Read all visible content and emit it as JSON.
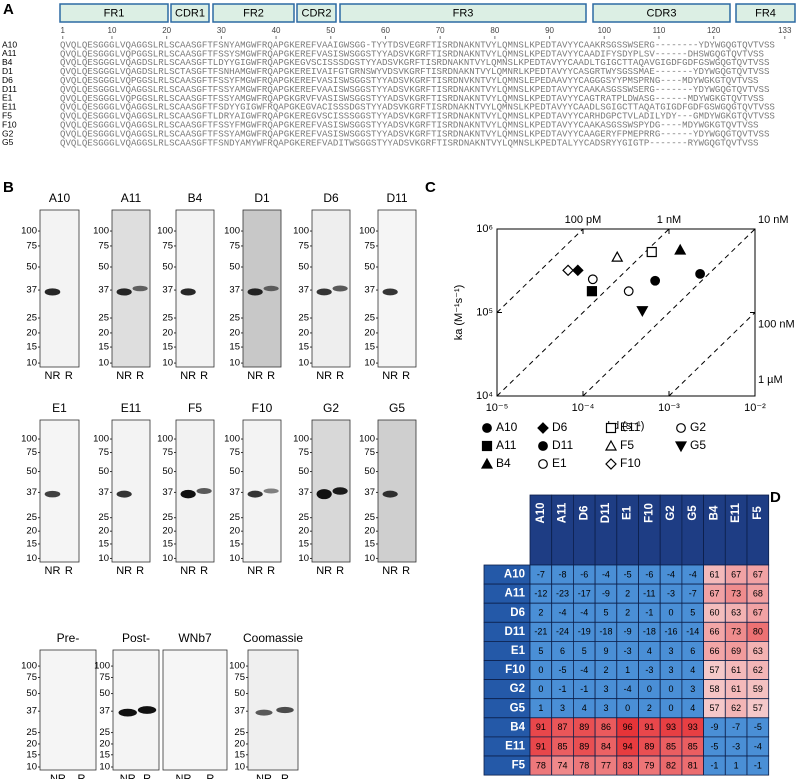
{
  "panel_labels": [
    "A",
    "B",
    "C",
    "D"
  ],
  "alignment": {
    "regions": [
      "FR1",
      "CDR1",
      "FR2",
      "CDR2",
      "FR3",
      "CDR3",
      "FR4"
    ],
    "ruler": [
      1,
      10,
      20,
      30,
      40,
      50,
      60,
      70,
      80,
      90,
      100,
      110,
      120,
      133
    ],
    "rows": [
      {
        "name": "A10",
        "sequence": "QVQLQESGGGLVQAGGSLRLSCAASGFTFSNYAMGWFRQAPGKEREFVAAIGWSGG-TYYTDSVEGRFTISRDNAKNTVYLQMNSLKPEDTAVYYCAAKRSGSSWSERG--------YDYWGQGTQVTVSS"
      },
      {
        "name": "A11",
        "sequence": "QVQLQESGGGLVQPGGSLRLSCAASGFTFSSYSMGWFRQAPGKEREFVASISWSGGSTYYADSVKGRFTISRDNAKNTVYLQMNSLKPEDTAVYYCAADIFYSDYPLSV------DHSWGQGTQVTVSS"
      },
      {
        "name": "B4",
        "sequence": "QVQLQESGGGLVQAGDSLRLSCAASGFTLDYYGIGWFRQAPGKEGVSCISSSDGSTYYADSVKGRFTISRDNAKNTVYLQMNSLKPEDTAVYYCAADLTGIGCTTAQAVGIGDFGDFGSWGQGTQVTVSS"
      },
      {
        "name": "D1",
        "sequence": "QVQLQESGGGLVQAGDSLRLSCTASGFTFSNHAMGWFRQAPGKEREIVAIFGTGRNSWYVDSVKGRFTISRDNAKNTVYLQMNRLKPEDTAVYYCASGRTWYSGSSMAE-------YDYWGQGTQVTVSS"
      },
      {
        "name": "D6",
        "sequence": "QVQLQESGGGLVQPGGSLRLSCAASGFTFSSYFMGWFRQAPGKEREFVASISWSGGSTYYADSVKGRFTISRDNVKNTVYLQMNSLEPEDAAVYYCAGGGSYYPMSPRNG----MDYWGKGTQVTVSS"
      },
      {
        "name": "D11",
        "sequence": "QVQLQESGGGLVQAGGSLRLSCAASGFTFSSYAMGWFRQAPGKEREFVAAISWSGGSTYYADSVKGRFTISRDNAKNTVYLQMNSLKPEDTAVYYCAAKASGSSWSERG-------YDYWGQGTQVTVSS"
      },
      {
        "name": "E1",
        "sequence": "QVQLQESGGGLVQPGGSLRLSCAASGFTFSSYAMGWFRQAPGKGRVFVASISWSGGSTYYADSVKGRFTISRDNAKNTVYLQMNSLKPEDTAVYYCAGTRATPLDWASG------MDYWGKGTQVTVSS"
      },
      {
        "name": "E11",
        "sequence": "QVQLQESGGGLVQAGGSLRLSCAASGFTFSDYYGIGWFRQAPGKEGVACISSSDGSTYYADSVKGRFTISRDNAKNTVYLQMNSLKPEDTAVYYCAADLSGIGCTTAQATGIGDFGDFGSWGQGTQVTVSS"
      },
      {
        "name": "F5",
        "sequence": "QVQLQESGGGLVQAGGSLRLSCAASGFTLDRYAIGWFRQAPGKEREGVSCISSSGGSTYYADSVKGRFTISRDNAKNTVYLQMNSLKPEDTAVYYCARHDGPCTVLADILYDY---GMDYWGKGTQVTVSS"
      },
      {
        "name": "F10",
        "sequence": "QVQLQESGGGLVQAGGSLRLSCAASGFTFSSYFMGWFRQAPGKEREFVASISWSGGSTYYADSVKGRFTISRDNAKNTVYLQMNSLKPEDTAVYYCAAKASGSSWSPYDG----MDYWGKGTQVTVSS"
      },
      {
        "name": "G2",
        "sequence": "QVQLQESGGGLVQAGGSLRLSCAASGFTFSSYAMGWFRQAPGKEREFVASISWSGGSTYYADSVKGRFTISRDNAKNTVYLQMNSLKPEDTAVYYCAAGERYFPMEPRRG------YDYWGQGTQVTVSS"
      },
      {
        "name": "G5",
        "sequence": "QVQLQESGGGLVQAGGSLRLSCAASGFTFSNDYAMYWFRQAPGKEREFVADITWSGGSTYYADSVKGRFTISRDNAKNTVYLQMNSLKPEDTALYYCADSRYYGIGTP-------RYWGQGTQVTVSS"
      }
    ]
  },
  "blots": {
    "markers": [
      "100",
      "75",
      "50",
      "37",
      "25",
      "20",
      "15",
      "10"
    ],
    "lanes": [
      "NR",
      "R"
    ],
    "rows": [
      [
        "A10",
        "A11",
        "B4",
        "D1",
        "D6",
        "D11"
      ],
      [
        "E1",
        "E11",
        "F5",
        "F10",
        "G2",
        "G5"
      ],
      [
        "Pre-",
        "Post-",
        "WNb7",
        "Coomassie"
      ]
    ]
  },
  "chart_data": [
    {
      "type": "scatter",
      "xlabel": "kd (s⁻¹)",
      "ylabel": "ka (M⁻¹s⁻¹)",
      "xscale": "log",
      "yscale": "log",
      "xlim": [
        1e-05,
        0.01
      ],
      "ylim": [
        10000,
        1000000
      ],
      "xticks": [
        {
          "value": 1e-05,
          "label": "10⁻⁵"
        },
        {
          "value": 0.0001,
          "label": "10⁻⁴"
        },
        {
          "value": 0.001,
          "label": "10⁻³"
        },
        {
          "value": 0.01,
          "label": "10⁻²"
        }
      ],
      "yticks": [
        {
          "value": 10000,
          "label": "10⁴"
        },
        {
          "value": 100000,
          "label": "10⁵"
        },
        {
          "value": 1000000,
          "label": "10⁶"
        }
      ],
      "kd_lines": [
        {
          "value": 1e-10,
          "label": "100 pM"
        },
        {
          "value": 1e-09,
          "label": "1 nM"
        },
        {
          "value": 1e-08,
          "label": "10 nM"
        },
        {
          "value": 1e-07,
          "label": "100 nM"
        },
        {
          "value": 1e-06,
          "label": "1 µM"
        }
      ],
      "series": [
        {
          "name": "A10",
          "marker": "circle",
          "filled": true,
          "x": [
            0.00069
          ],
          "values": [
            240000
          ]
        },
        {
          "name": "A11",
          "marker": "square",
          "filled": true,
          "x": [
            0.000127
          ],
          "values": [
            180000
          ]
        },
        {
          "name": "B4",
          "marker": "triangle",
          "filled": true,
          "x": [
            0.00135
          ],
          "values": [
            560000
          ]
        },
        {
          "name": "D6",
          "marker": "diamond",
          "filled": true,
          "x": [
            8.7e-05
          ],
          "values": [
            320000
          ]
        },
        {
          "name": "D11",
          "marker": "circle",
          "filled": true,
          "x": [
            0.0023
          ],
          "values": [
            290000
          ]
        },
        {
          "name": "E1",
          "marker": "circle",
          "filled": false,
          "x": [
            0.00034
          ],
          "values": [
            180000
          ]
        },
        {
          "name": "E11",
          "marker": "square",
          "filled": false,
          "x": [
            0.00063
          ],
          "values": [
            530000
          ]
        },
        {
          "name": "F5",
          "marker": "triangle",
          "filled": false,
          "x": [
            0.00025
          ],
          "values": [
            460000
          ]
        },
        {
          "name": "F10",
          "marker": "diamond",
          "filled": false,
          "x": [
            6.7e-05
          ],
          "values": [
            320000
          ]
        },
        {
          "name": "G2",
          "marker": "circle",
          "filled": false,
          "x": [
            0.00013
          ],
          "values": [
            250000
          ]
        },
        {
          "name": "G5",
          "marker": "triangle-down",
          "filled": true,
          "x": [
            0.00049
          ],
          "values": [
            105000
          ]
        }
      ]
    },
    {
      "type": "heatmap",
      "x_categories": [
        "A10",
        "A11",
        "D6",
        "D11",
        "E1",
        "F10",
        "G2",
        "G5",
        "B4",
        "E11",
        "F5"
      ],
      "y_categories": [
        "A10",
        "A11",
        "D6",
        "D11",
        "E1",
        "F10",
        "G2",
        "G5",
        "B4",
        "E11",
        "F5"
      ],
      "values": [
        [
          -7,
          -8,
          -6,
          -4,
          -5,
          -6,
          -4,
          -4,
          61,
          67,
          67
        ],
        [
          -12,
          -23,
          -17,
          -9,
          2,
          -11,
          -3,
          -7,
          67,
          73,
          68
        ],
        [
          2,
          -4,
          -4,
          5,
          2,
          -1,
          0,
          5,
          60,
          63,
          67
        ],
        [
          -21,
          -24,
          -19,
          -18,
          -9,
          -18,
          -16,
          -14,
          66,
          73,
          80
        ],
        [
          5,
          6,
          5,
          9,
          -3,
          4,
          3,
          6,
          66,
          69,
          63
        ],
        [
          0,
          -5,
          -4,
          2,
          1,
          -3,
          3,
          4,
          57,
          61,
          62
        ],
        [
          0,
          -1,
          -1,
          3,
          -4,
          0,
          0,
          3,
          58,
          61,
          59
        ],
        [
          1,
          3,
          4,
          3,
          0,
          2,
          0,
          4,
          57,
          62,
          57
        ],
        [
          91,
          87,
          89,
          86,
          96,
          91,
          93,
          93,
          -9,
          -7,
          -5
        ],
        [
          91,
          85,
          89,
          84,
          94,
          89,
          85,
          85,
          -5,
          -3,
          -4
        ],
        [
          78,
          74,
          78,
          77,
          83,
          79,
          82,
          81,
          -1,
          1,
          -1
        ]
      ]
    }
  ]
}
